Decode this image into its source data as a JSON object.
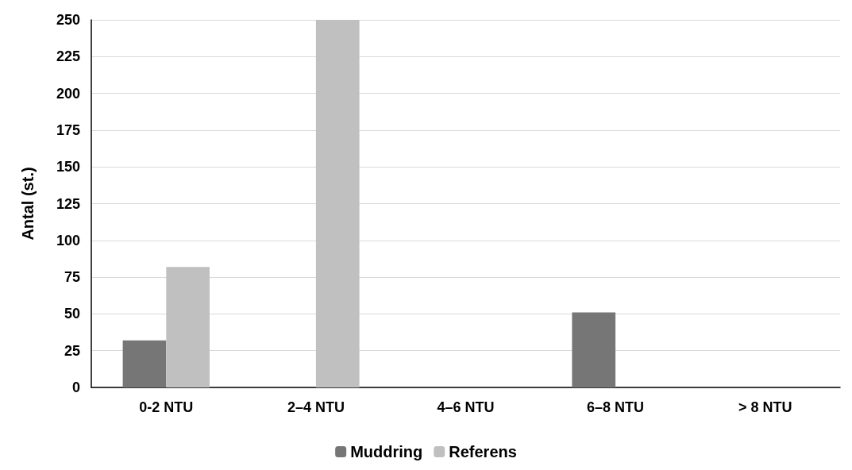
{
  "chart_data": {
    "type": "bar",
    "ylabel": "Antal (st.)",
    "categories": [
      "0-2 NTU",
      "2–4 NTU",
      "4–6 NTU",
      "6–8 NTU",
      "> 8 NTU"
    ],
    "series": [
      {
        "name": "Muddring",
        "color": "#767676",
        "values": [
          32,
          0,
          0,
          51,
          0
        ]
      },
      {
        "name": "Referens",
        "color": "#c0c0c0",
        "values": [
          82,
          250,
          0,
          0,
          0
        ]
      }
    ],
    "ylim": [
      0,
      250
    ],
    "yticks": [
      0,
      25,
      50,
      75,
      100,
      125,
      150,
      175,
      200,
      225,
      250
    ],
    "grid": "y",
    "legend": "bottom"
  }
}
